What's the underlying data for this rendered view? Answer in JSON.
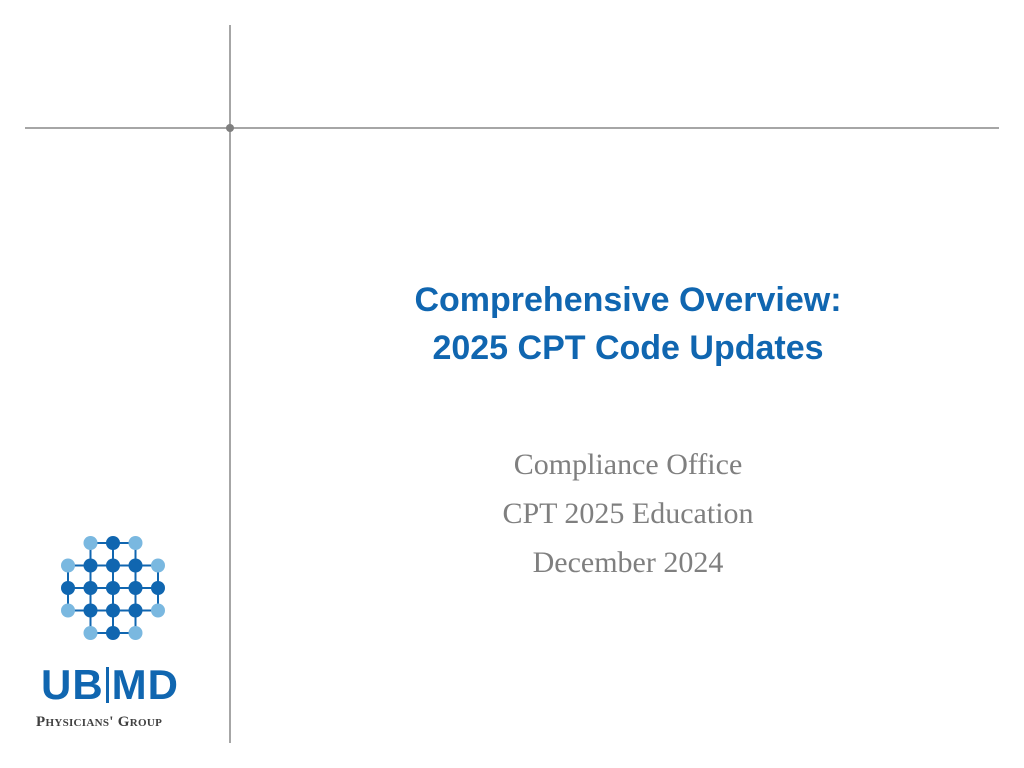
{
  "slide": {
    "title_lines": [
      "Comprehensive Overview:",
      "2025 CPT Code Updates"
    ],
    "subtitle_lines": [
      "Compliance Office",
      "CPT 2025 Education",
      "December 2024"
    ]
  },
  "logo": {
    "name_left": "UB",
    "name_right": "MD",
    "tagline": "Physicians' Group",
    "icon": "dot-grid-logo-icon"
  },
  "colors": {
    "title": "#1066b0",
    "subtitle": "#7f7f7f",
    "rule": "#a6a6a6",
    "logo_dark_dot": "#1066b0",
    "logo_light_dot": "#7ab8e0"
  }
}
